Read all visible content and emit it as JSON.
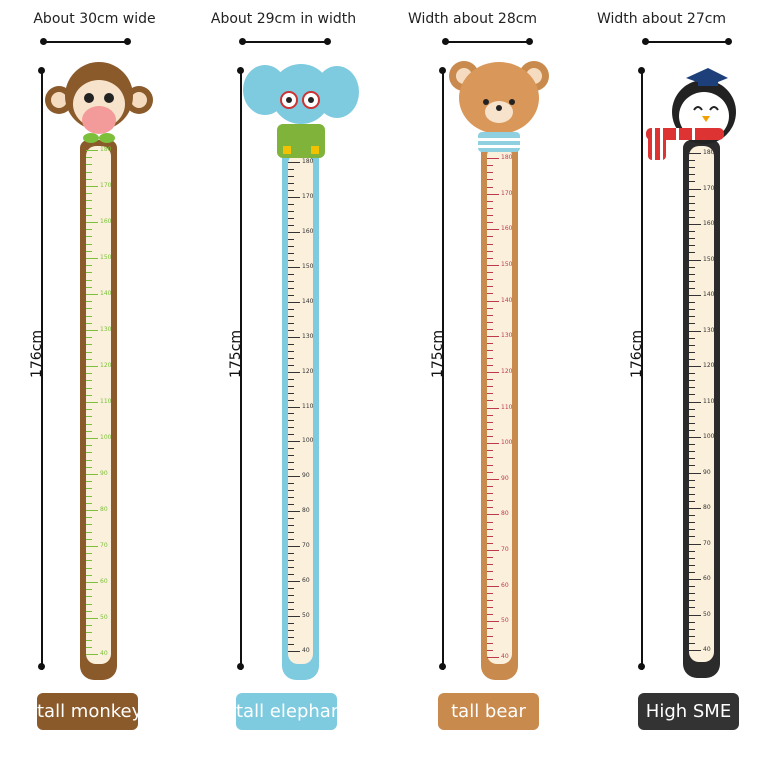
{
  "ruler_marks": [
    180,
    170,
    160,
    150,
    140,
    130,
    120,
    110,
    100,
    90,
    80,
    70,
    60,
    50,
    40
  ],
  "charts": [
    {
      "name": "monkey",
      "width_label": "About 30cm wide",
      "height_label": "176cm",
      "badge": "tall monkey",
      "frame_color": "#8B5A2B",
      "tick_color": "#7cbf3a",
      "badge_color": "#8B5A2B"
    },
    {
      "name": "elephant",
      "width_label": "About 29cm in width",
      "height_label": "175cm",
      "badge": "tall elephant",
      "frame_color": "#7ECBE0",
      "tick_color": "#333333",
      "badge_color": "#7ECBE0"
    },
    {
      "name": "bear",
      "width_label": "Width about 28cm",
      "height_label": "175cm",
      "badge": "tall bear",
      "frame_color": "#C98A4E",
      "tick_color": "#c0394a",
      "badge_color": "#C98A4E"
    },
    {
      "name": "penguin",
      "width_label": "Width about 27cm",
      "height_label": "176cm",
      "badge": "High SME",
      "frame_color": "#2b2b2b",
      "tick_color": "#333333",
      "badge_color": "#333333"
    }
  ]
}
